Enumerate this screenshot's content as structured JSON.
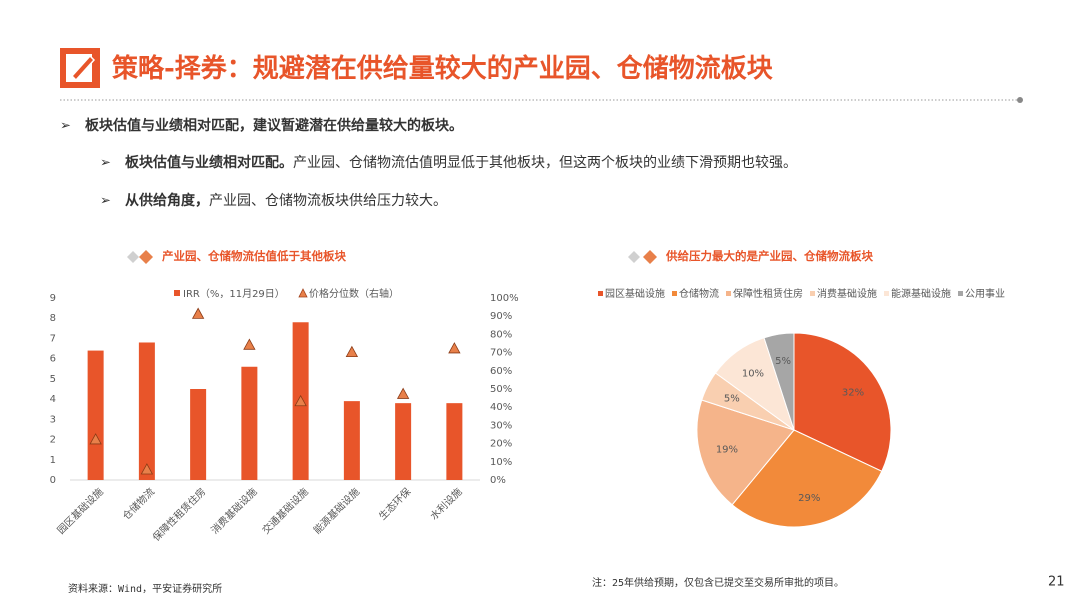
{
  "header": {
    "title": "策略-择券：规避潜在供给量较大的产业园、仓储物流板块"
  },
  "bullets": [
    {
      "bold": "板块估值与业绩相对匹配，建议暂避潜在供给量较大的板块。"
    },
    {
      "bold": "板块估值与业绩相对匹配。",
      "text": "产业园、仓储物流估值明显低于其他板块，但这两个板块的业绩下滑预期也较强。"
    },
    {
      "bold": "从供给角度，",
      "text": "产业园、仓储物流板块供给压力较大。"
    }
  ],
  "chart_data": [
    {
      "type": "bar",
      "title": "产业园、仓储物流估值低于其他板块",
      "categories": [
        "园区基础设施",
        "仓储物流",
        "保障性租赁住房",
        "消费基础设施",
        "交通基础设施",
        "能源基础设施",
        "生态环保",
        "水利设施"
      ],
      "series": [
        {
          "name": "IRR（%，11月29日）",
          "color": "#e8552a",
          "values": [
            6.4,
            6.8,
            4.5,
            5.6,
            7.8,
            3.9,
            3.8,
            3.8
          ]
        },
        {
          "name": "价格分位数（右轴）",
          "type": "scatter",
          "marker": "triangle",
          "color": "#e8804a",
          "axis": "y2",
          "values": [
            22,
            5.5,
            91,
            74,
            43,
            70,
            47,
            72
          ]
        }
      ],
      "ylim": [
        0,
        9
      ],
      "yticks": [
        0,
        1,
        2,
        3,
        4,
        5,
        6,
        7,
        8,
        9
      ],
      "y2lim": [
        0,
        100
      ],
      "y2ticks": [
        {
          "value": 0,
          "label": "0%"
        },
        {
          "value": 10,
          "label": "10%"
        },
        {
          "value": 20,
          "label": "20%"
        },
        {
          "value": 30,
          "label": "30%"
        },
        {
          "value": 40,
          "label": "40%"
        },
        {
          "value": 50,
          "label": "50%"
        },
        {
          "value": 60,
          "label": "60%"
        },
        {
          "value": 70,
          "label": "70%"
        },
        {
          "value": 80,
          "label": "80%"
        },
        {
          "value": 90,
          "label": "90%"
        },
        {
          "value": 100,
          "label": "100%"
        }
      ],
      "grid": false,
      "legend": "top"
    },
    {
      "type": "pie",
      "title": "供给压力最大的是产业园、仓储物流板块",
      "categories": [
        "园区基础设施",
        "仓储物流",
        "保障性租赁住房",
        "消费基础设施",
        "能源基础设施",
        "公用事业"
      ],
      "values": [
        32,
        29,
        19,
        5,
        10,
        5
      ],
      "value_labels": [
        "32%",
        "29%",
        "19%",
        "5%",
        "10%",
        "5%"
      ],
      "colors": [
        "#e8552a",
        "#f28a3a",
        "#f5b48a",
        "#f9cfb0",
        "#fce6d6",
        "#a6a6a6"
      ],
      "legend": "top"
    }
  ],
  "footer": {
    "source": "资料来源：Wind，平安证券研究所",
    "note": "注：25年供给预期，仅包含已提交至交易所审批的项目。",
    "page": "21"
  }
}
